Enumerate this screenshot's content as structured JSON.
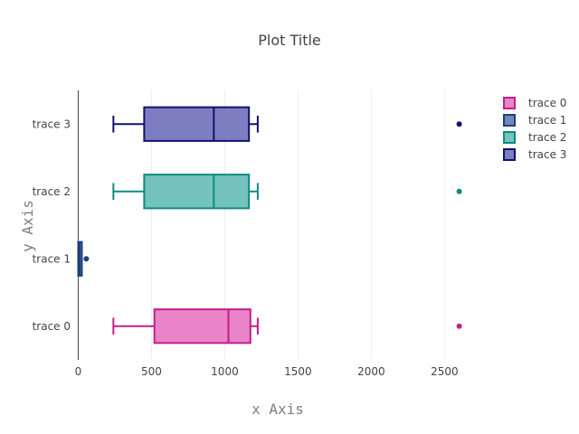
{
  "chart_data": {
    "type": "box",
    "orientation": "horizontal",
    "title": "Plot Title",
    "xlabel": "x Axis",
    "ylabel": "y Axis",
    "xlim": [
      -40,
      2800
    ],
    "xticks": [
      0,
      500,
      1000,
      1500,
      2000,
      2500
    ],
    "xtick_labels": [
      "0",
      "500",
      "1000",
      "1500",
      "2000",
      "2500"
    ],
    "grid": "vertical",
    "legend_position": "top-right",
    "categories": [
      "trace 0",
      "trace 1",
      "trace 2",
      "trace 3"
    ],
    "series": [
      {
        "name": "trace 0",
        "color": "#c41e8a",
        "fill": "#e884c7",
        "min": 240,
        "q1": 520,
        "median": 1025,
        "q3": 1175,
        "max": 1225,
        "outliers": [
          2600
        ]
      },
      {
        "name": "trace 1",
        "color": "#1f3f7a",
        "fill": "#6f8ab8",
        "min": 0,
        "q1": 0,
        "median": 10,
        "q3": 20,
        "max": 20,
        "outliers": [
          55
        ]
      },
      {
        "name": "trace 2",
        "color": "#0f8a80",
        "fill": "#74c3bd",
        "min": 240,
        "q1": 450,
        "median": 925,
        "q3": 1165,
        "max": 1225,
        "outliers": [
          2600
        ]
      },
      {
        "name": "trace 3",
        "color": "#11116e",
        "fill": "#7d7dc2",
        "min": 240,
        "q1": 450,
        "median": 925,
        "q3": 1165,
        "max": 1225,
        "outliers": [
          2600
        ]
      }
    ]
  }
}
